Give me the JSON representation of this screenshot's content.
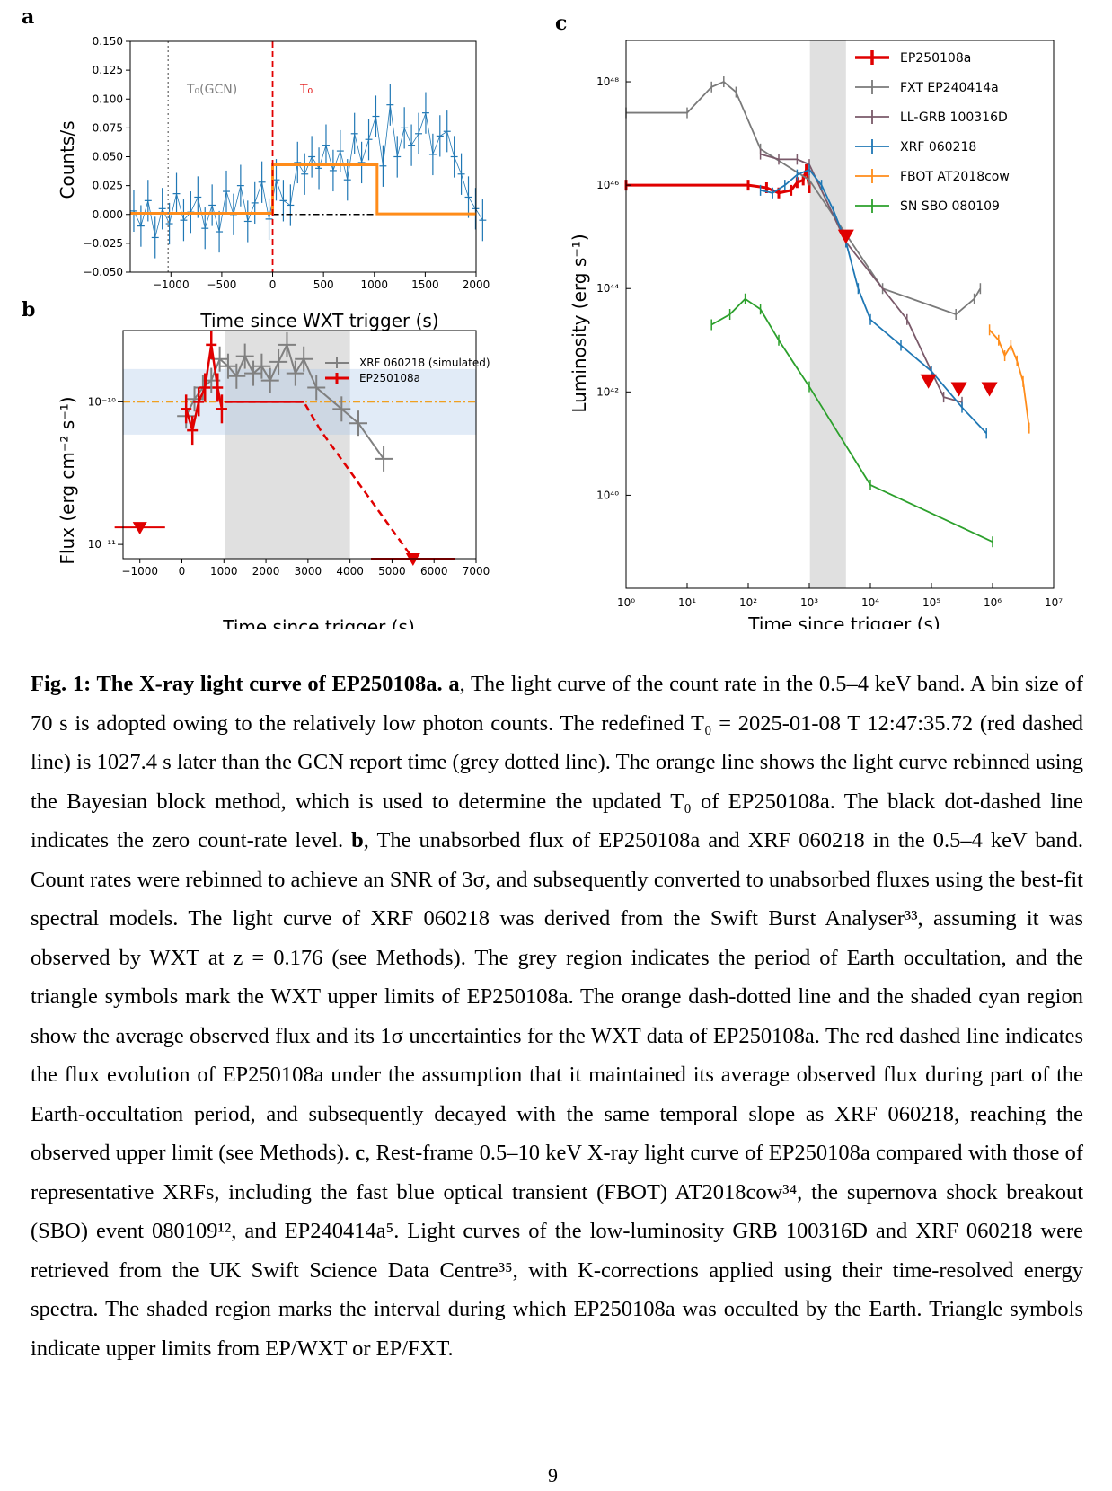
{
  "panels": {
    "a": {
      "label": "a"
    },
    "b": {
      "label": "b"
    },
    "c": {
      "label": "c"
    }
  },
  "chart_data": [
    {
      "panel": "a",
      "type": "line",
      "xlabel": "Time since WXT trigger (s)",
      "ylabel": "Counts/s",
      "xlim": [
        -1400,
        2000
      ],
      "ylim": [
        -0.05,
        0.15
      ],
      "xticks": [
        "−1000",
        "−500",
        "0",
        "500",
        "1000",
        "1500",
        "2000"
      ],
      "xtick_values": [
        -1000,
        -500,
        0,
        500,
        1000,
        1500,
        2000
      ],
      "yticks": [
        "−0.050",
        "−0.025",
        "0.000",
        "0.025",
        "0.050",
        "0.075",
        "0.100",
        "0.125",
        "0.150"
      ],
      "ytick_values": [
        -0.05,
        -0.025,
        0,
        0.025,
        0.05,
        0.075,
        0.1,
        0.125,
        0.15
      ],
      "annotations": [
        {
          "text": "T₀(GCN)",
          "x": -1027,
          "color": "#808080",
          "style": "dotted"
        },
        {
          "text": "T₀",
          "x": 0,
          "color": "#e00000",
          "style": "dashed"
        }
      ],
      "bayesian_blocks": {
        "x": [
          -1400,
          0,
          0,
          1027,
          1027,
          2000
        ],
        "y": [
          0.001,
          0.001,
          0.043,
          0.043,
          0.0005,
          0.0005
        ],
        "color": "#ff8c1a"
      },
      "zero_level": {
        "x": [
          0,
          1027
        ],
        "y": [
          0,
          0
        ]
      },
      "series": [
        {
          "bin_width": 70,
          "x_start": -1400,
          "values": [
            0.003,
            -0.01,
            0.012,
            -0.02,
            0.005,
            -0.008,
            0.018,
            -0.005,
            0.002,
            0.015,
            -0.012,
            0.008,
            -0.015,
            0.02,
            0.0,
            0.025,
            -0.006,
            0.01,
            0.028,
            -0.004,
            0.03,
            0.012,
            0.008,
            0.045,
            0.035,
            0.05,
            0.04,
            0.06,
            0.038,
            0.055,
            0.03,
            0.07,
            0.045,
            0.065,
            0.085,
            0.042,
            0.095,
            0.05,
            0.075,
            0.06,
            0.07,
            0.088,
            0.052,
            0.068,
            0.072,
            0.05,
            0.035,
            0.015,
            0.005,
            -0.005
          ]
        }
      ]
    },
    {
      "panel": "b",
      "type": "line",
      "xlabel": "Time since trigger (s)",
      "ylabel": "Flux (erg cm⁻² s⁻¹)",
      "xlim": [
        -1400,
        7000
      ],
      "ylim_log10": [
        -11.1,
        -9.5
      ],
      "xticks": [
        "−1000",
        "0",
        "1000",
        "2000",
        "3000",
        "4000",
        "5000",
        "6000",
        "7000"
      ],
      "xtick_values": [
        -1000,
        0,
        1000,
        2000,
        3000,
        4000,
        5000,
        6000,
        7000
      ],
      "yticks": [
        "10⁻¹¹",
        "10⁻¹⁰"
      ],
      "ytick_values_log10": [
        -11,
        -10
      ],
      "occultation": [
        1027,
        4000
      ],
      "avg_flux_log10": -10.0,
      "avg_flux_band_log10": [
        -10.23,
        -9.77
      ],
      "legend": [
        "XRF 060218 (simulated)",
        "EP250108a"
      ],
      "series": [
        {
          "name": "XRF 060218 (simulated)",
          "color": "#808080",
          "x": [
            100,
            300,
            500,
            700,
            900,
            1100,
            1300,
            1500,
            1700,
            1900,
            2100,
            2300,
            2500,
            2700,
            2900,
            3200,
            3800,
            4200,
            4800
          ],
          "y_log10": [
            -10.1,
            -9.98,
            -9.9,
            -9.85,
            -9.7,
            -9.75,
            -9.82,
            -9.68,
            -9.8,
            -9.75,
            -9.85,
            -9.72,
            -9.6,
            -9.8,
            -9.7,
            -9.9,
            -10.05,
            -10.15,
            -10.4
          ]
        },
        {
          "name": "EP250108a",
          "color": "#e00000",
          "x": [
            100,
            250,
            400,
            550,
            700,
            850,
            950
          ],
          "y_log10": [
            -10.05,
            -10.2,
            -10.0,
            -9.9,
            -9.6,
            -9.9,
            -10.05
          ]
        }
      ],
      "upper_limits": [
        {
          "x": -1000,
          "y_log10": -10.88,
          "xerr": 600
        },
        {
          "x": 5500,
          "y_log10": -11.1,
          "xerr": 1000
        }
      ],
      "model_line": {
        "x": [
          1027,
          2900,
          3300,
          5500
        ],
        "y_log10": [
          -10.0,
          -10.0,
          -10.2,
          -11.1
        ]
      }
    },
    {
      "panel": "c",
      "type": "line",
      "xlabel": "Time since trigger (s)",
      "ylabel": "Luminosity (erg s⁻¹)",
      "xscale": "log",
      "yscale": "log",
      "xlim_log10": [
        0,
        7
      ],
      "ylim_log10": [
        38.2,
        48.8
      ],
      "xticks": [
        "10⁰",
        "10¹",
        "10²",
        "10³",
        "10⁴",
        "10⁵",
        "10⁶",
        "10⁷"
      ],
      "xtick_values_log10": [
        0,
        1,
        2,
        3,
        4,
        5,
        6,
        7
      ],
      "yticks": [
        "10⁴⁰",
        "10⁴²",
        "10⁴⁴",
        "10⁴⁶",
        "10⁴⁸"
      ],
      "ytick_values_log10": [
        40,
        42,
        44,
        46,
        48
      ],
      "occultation_log10": [
        3.01,
        3.6
      ],
      "legend_position": "top-right",
      "series": [
        {
          "name": "EP250108a",
          "color": "#e00000",
          "x_log10": [
            0,
            2.0,
            2.3,
            2.5,
            2.7,
            2.8,
            2.9,
            2.95,
            3.0
          ],
          "y_log10": [
            46.0,
            46.0,
            45.95,
            45.85,
            45.9,
            46.05,
            46.1,
            46.3,
            45.95
          ]
        },
        {
          "name": "FXT EP240414a",
          "color": "#7a7a7a",
          "x_log10": [
            0,
            1.0,
            1.4,
            1.6,
            1.8,
            2.2,
            3.0,
            4.2,
            5.4,
            5.7,
            5.8
          ],
          "y_log10": [
            47.4,
            47.4,
            47.9,
            48.0,
            47.8,
            46.7,
            46.1,
            44.0,
            43.5,
            43.8,
            44.0
          ]
        },
        {
          "name": "LL-GRB 100316D",
          "color": "#7a5a6a",
          "x_log10": [
            2.2,
            2.5,
            2.8,
            3.0,
            3.6,
            4.6,
            5.2,
            5.5
          ],
          "y_log10": [
            46.6,
            46.5,
            46.5,
            46.4,
            44.9,
            43.4,
            41.9,
            41.8
          ]
        },
        {
          "name": "XRF 060218",
          "color": "#1f77b4",
          "x_log10": [
            2.2,
            2.4,
            2.6,
            2.8,
            3.0,
            3.2,
            3.4,
            3.6,
            3.8,
            4.0,
            4.5,
            5.0,
            5.5,
            5.9
          ],
          "y_log10": [
            45.9,
            45.85,
            46.0,
            46.2,
            46.3,
            46.0,
            45.5,
            44.9,
            44.0,
            43.4,
            42.9,
            42.4,
            41.7,
            41.2
          ]
        },
        {
          "name": "FBOT AT2018cow",
          "color": "#ff8c1a",
          "x_log10": [
            5.95,
            6.1,
            6.2,
            6.3,
            6.4,
            6.5,
            6.6
          ],
          "y_log10": [
            43.2,
            43.0,
            42.7,
            42.9,
            42.6,
            42.2,
            41.3
          ]
        },
        {
          "name": "SN SBO 080109",
          "color": "#2ca02c",
          "x_log10": [
            1.4,
            1.7,
            1.95,
            2.2,
            2.5,
            3.0,
            4.0,
            6.0
          ],
          "y_log10": [
            43.3,
            43.5,
            43.8,
            43.6,
            43.0,
            42.1,
            40.2,
            39.1
          ]
        }
      ],
      "upper_limits": [
        {
          "x_log10": 3.6,
          "y_log10": 45.0,
          "color": "#e00000"
        },
        {
          "x_log10": 4.95,
          "y_log10": 42.2,
          "color": "#e00000"
        },
        {
          "x_log10": 5.45,
          "y_log10": 42.05,
          "color": "#e00000"
        },
        {
          "x_log10": 5.95,
          "y_log10": 42.05,
          "color": "#e00000"
        }
      ]
    }
  ],
  "caption": {
    "fig_label": "Fig. 1",
    "title": "The X-ray light curve of EP250108a.",
    "a_label": "a",
    "a_text": ", The light curve of the count rate in the 0.5–4 keV band. A bin size of 70 s is adopted owing to the relatively low photon counts. The redefined T₀ = 2025-01-08 T 12:47:35.72 (red dashed line) is 1027.4 s later than the GCN report time (grey dotted line). The orange line shows the light curve rebinned using the Bayesian block method, which is used to determine the updated T₀ of EP250108a. The black dot-dashed line indicates the zero count-rate level. ",
    "b_label": "b",
    "b_text": ", The unabsorbed flux of EP250108a and XRF 060218 in the 0.5–4 keV band. Count rates were rebinned to achieve an SNR of 3σ, and subsequently converted to unabsorbed fluxes using the best-fit spectral models. The light curve of XRF 060218 was derived from the Swift Burst Analyser³³, assuming it was observed by WXT at z = 0.176 (see Methods). The grey region indicates the period of Earth occultation, and the triangle symbols mark the WXT upper limits of EP250108a. The orange dash-dotted line and the shaded cyan region show the average observed flux and its 1σ uncertainties for the WXT data of EP250108a. The red dashed line indicates the flux evolution of EP250108a under the assumption that it maintained its average observed flux during part of the Earth-occultation period, and subsequently decayed with the same temporal slope as XRF 060218, reaching the observed upper limit (see Methods). ",
    "c_label": "c",
    "c_text": ", Rest-frame 0.5–10 keV X-ray light curve of EP250108a compared with those of representative XRFs, including the fast blue optical transient (FBOT) AT2018cow³⁴, the supernova shock breakout (SBO) event 080109¹², and EP240414a⁵. Light curves of the low-luminosity GRB 100316D and XRF 060218 were retrieved from the UK Swift Science Data Centre³⁵, with K-corrections applied using their time-resolved energy spectra. The shaded region marks the interval during which EP250108a was occulted by the Earth. Triangle symbols indicate upper limits from EP/WXT or EP/FXT."
  },
  "page_number": "9"
}
